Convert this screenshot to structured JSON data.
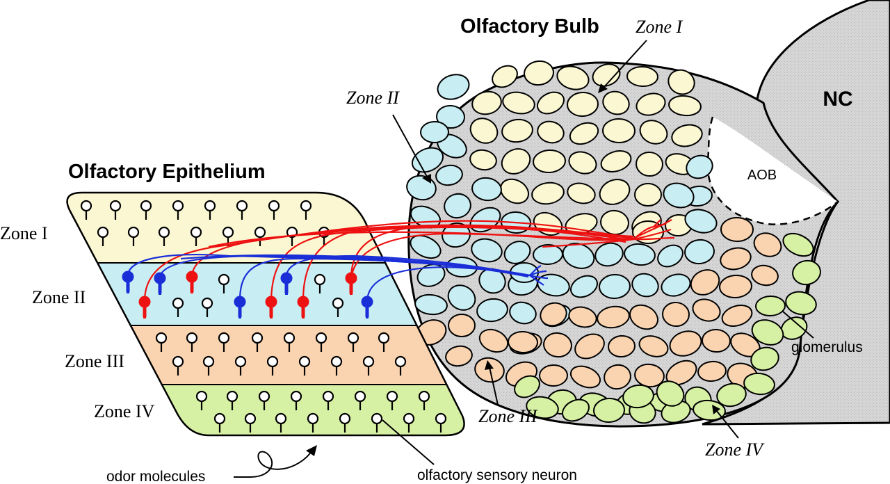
{
  "titles": {
    "bulb": "Olfactory Bulb",
    "epithelium": "Olfactory Epithelium",
    "nc": "NC",
    "aob": "AOB"
  },
  "epithelium_zones": [
    "Zone I",
    "Zone II",
    "Zone III",
    "Zone IV"
  ],
  "bulb_zones": [
    "Zone I",
    "Zone II",
    "Zone III",
    "Zone IV"
  ],
  "labels": {
    "glomerulus": "glomerulus",
    "odor": "odor molecules",
    "neuron": "olfactory sensory neuron"
  },
  "colors": {
    "zone1": "#fbf7d2",
    "zone2": "#c8eef4",
    "zone3": "#fad4b0",
    "zone4": "#d6f1a4",
    "bulb_bg": "#d4d4d4",
    "nc_bg": "#d2d2d2",
    "red_neuron": "#ee1111",
    "blue_neuron": "#1a2ed8"
  },
  "icons": [
    "olfactory-sensory-neuron-icon",
    "glomerulus-icon",
    "axon-bundle"
  ]
}
